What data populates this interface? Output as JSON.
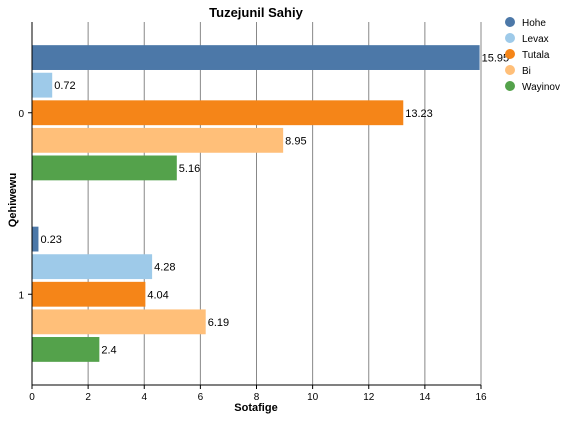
{
  "chart_data": {
    "type": "bar",
    "orientation": "horizontal",
    "title": "Tuzejunil Sahiy",
    "xlabel": "Sotafige",
    "ylabel": "Qehiwewu",
    "categories": [
      "0",
      "1"
    ],
    "series": [
      {
        "name": "Hohe",
        "color": "#4c78a8",
        "values": [
          15.95,
          0.23
        ]
      },
      {
        "name": "Levax",
        "color": "#9ecae9",
        "values": [
          0.72,
          4.28
        ]
      },
      {
        "name": "Tutala",
        "color": "#f58518",
        "values": [
          13.23,
          4.04
        ]
      },
      {
        "name": "Bi",
        "color": "#ffbf79",
        "values": [
          8.95,
          6.19
        ]
      },
      {
        "name": "Wayinov",
        "color": "#54a24b",
        "values": [
          5.16,
          2.4
        ]
      }
    ],
    "xlim": [
      0,
      16
    ],
    "xticks": [
      0,
      2,
      4,
      6,
      8,
      10,
      12,
      14,
      16
    ],
    "grid": true,
    "legend_position": "top-right"
  }
}
